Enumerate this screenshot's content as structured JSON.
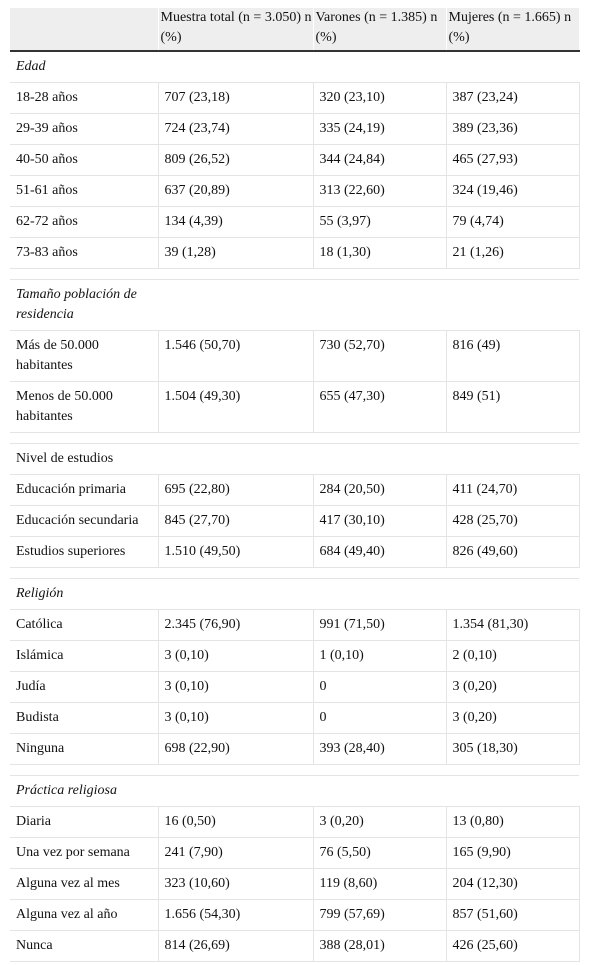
{
  "header": {
    "col0": "",
    "col1": "Muestra total (n = 3.050) n (%)",
    "col2": "Varones (n = 1.385) n (%)",
    "col3": "Mujeres (n = 1.665) n (%)"
  },
  "sections": [
    {
      "title": "Edad",
      "italic": true,
      "rows": [
        [
          "18-28 años",
          "707 (23,18)",
          "320 (23,10)",
          "387 (23,24)"
        ],
        [
          "29-39 años",
          "724 (23,74)",
          "335 (24,19)",
          "389 (23,36)"
        ],
        [
          "40-50 años",
          "809 (26,52)",
          "344 (24,84)",
          "465 (27,93)"
        ],
        [
          "51-61 años",
          "637 (20,89)",
          "313 (22,60)",
          "324 (19,46)"
        ],
        [
          "62-72 años",
          "134 (4,39)",
          "55 (3,97)",
          "79 (4,74)"
        ],
        [
          "73-83 años",
          "39 (1,28)",
          "18 (1,30)",
          "21 (1,26)"
        ]
      ]
    },
    {
      "title": "Tamaño población de residencia",
      "italic": true,
      "rows": [
        [
          "Más de 50.000 habitantes",
          "1.546 (50,70)",
          "730 (52,70)",
          "816 (49)"
        ],
        [
          "Menos de 50.000 habitantes",
          "1.504 (49,30)",
          "655 (47,30)",
          "849 (51)"
        ]
      ]
    },
    {
      "title": "Nivel de estudios",
      "italic": false,
      "rows": [
        [
          "Educación primaria",
          "695 (22,80)",
          "284 (20,50)",
          "411 (24,70)"
        ],
        [
          "Educación secundaria",
          "845 (27,70)",
          "417 (30,10)",
          "428 (25,70)"
        ],
        [
          "Estudios superiores",
          "1.510 (49,50)",
          "684 (49,40)",
          "826 (49,60)"
        ]
      ]
    },
    {
      "title": "Religión",
      "italic": true,
      "rows": [
        [
          "Católica",
          "2.345 (76,90)",
          "991 (71,50)",
          "1.354 (81,30)"
        ],
        [
          "Islámica",
          "3 (0,10)",
          "1 (0,10)",
          "2 (0,10)"
        ],
        [
          "Judía",
          "3 (0,10)",
          "0",
          "3 (0,20)"
        ],
        [
          "Budista",
          "3 (0,10)",
          "0",
          "3 (0,20)"
        ],
        [
          "Ninguna",
          "698 (22,90)",
          "393 (28,40)",
          "305 (18,30)"
        ]
      ]
    },
    {
      "title": "Práctica religiosa",
      "italic": true,
      "rows": [
        [
          "Diaria",
          "16 (0,50)",
          "3 (0,20)",
          "13 (0,80)"
        ],
        [
          "Una vez por semana",
          "241 (7,90)",
          "76 (5,50)",
          "165 (9,90)"
        ],
        [
          "Alguna vez al mes",
          "323 (10,60)",
          "119 (8,60)",
          "204 (12,30)"
        ],
        [
          "Alguna vez al año",
          "1.656 (54,30)",
          "799 (57,69)",
          "857 (51,60)"
        ],
        [
          "Nunca",
          "814 (26,69)",
          "388 (28,01)",
          "426 (25,60)"
        ]
      ]
    }
  ]
}
